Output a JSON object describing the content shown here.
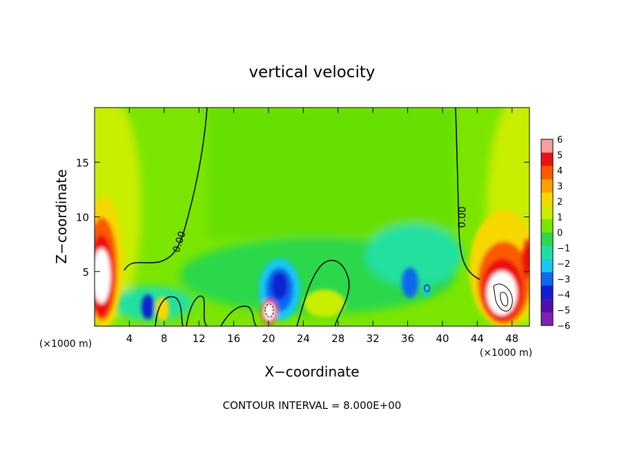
{
  "chart_data": {
    "type": "heatmap",
    "title": "vertical velocity",
    "xlabel": "X−coordinate",
    "ylabel": "Z−coordinate",
    "x_unit_left": "(×1000 m)",
    "x_unit_right": "(×1000 m)",
    "xlim": [
      0,
      50
    ],
    "ylim": [
      0,
      20
    ],
    "xticks": [
      4,
      8,
      12,
      16,
      20,
      24,
      28,
      32,
      36,
      40,
      44,
      48
    ],
    "xtick_labels": [
      "4",
      "8",
      "12",
      "16",
      "20",
      "24",
      "28",
      "32",
      "36",
      "40",
      "44",
      "48"
    ],
    "yticks": [
      5,
      10,
      15
    ],
    "ytick_labels": [
      "5",
      "10",
      "15"
    ],
    "colorbar": {
      "levels": [
        6,
        5,
        4,
        3,
        2,
        1,
        0,
        -1,
        -2,
        -3,
        -4,
        -5,
        -6
      ],
      "labels": [
        "6",
        "5",
        "4",
        "3",
        "2",
        "1",
        "0",
        "−1",
        "−2",
        "−3",
        "−4",
        "−5",
        "−6"
      ],
      "colors": [
        "#f6a0a0",
        "#ee1010",
        "#fa5a00",
        "#fca000",
        "#f6d800",
        "#c8ee00",
        "#7ae600",
        "#2cd84a",
        "#20e0a0",
        "#18c8f0",
        "#1068f0",
        "#1020d0",
        "#5010b0",
        "#8020b0"
      ]
    },
    "background_value": 0.2,
    "contour_labels": [
      "0.00",
      "0.00"
    ],
    "footer": "CONTOUR INTERVAL = 8.000E+00",
    "features": [
      {
        "kind": "updraft",
        "x": 1.0,
        "z": 3.5,
        "value": 7
      },
      {
        "kind": "updraft",
        "x": 2.0,
        "z": 7.0,
        "value": 4
      },
      {
        "kind": "updraft",
        "x": 46.5,
        "z": 3.0,
        "value": 7
      },
      {
        "kind": "updraft",
        "x": 48.5,
        "z": 6.0,
        "value": 3
      },
      {
        "kind": "updraft",
        "x": 20.0,
        "z": 1.2,
        "value": 7
      },
      {
        "kind": "downdraft",
        "x": 20.5,
        "z": 3.5,
        "value": -5
      },
      {
        "kind": "downdraft",
        "x": 6.3,
        "z": 1.8,
        "value": -4
      },
      {
        "kind": "downdraft",
        "x": 36.0,
        "z": 3.5,
        "value": -4
      },
      {
        "kind": "downdraft",
        "x": 36.0,
        "z": 6.0,
        "value": -2
      },
      {
        "kind": "updraft",
        "x": 8.0,
        "z": 1.5,
        "value": 2
      },
      {
        "kind": "updraft",
        "x": 26.0,
        "z": 2.0,
        "value": 1.5
      }
    ]
  }
}
